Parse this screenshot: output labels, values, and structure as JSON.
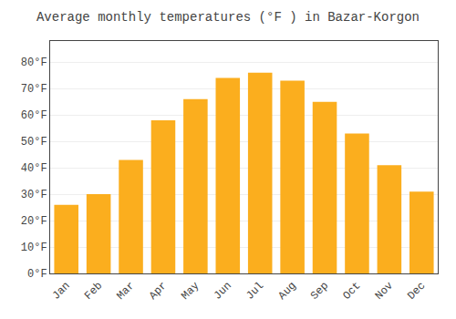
{
  "chart_data": {
    "type": "bar",
    "title": "Average monthly temperatures (°F ) in Bazar-Korgon",
    "categories": [
      "Jan",
      "Feb",
      "Mar",
      "Apr",
      "May",
      "Jun",
      "Jul",
      "Aug",
      "Sep",
      "Oct",
      "Nov",
      "Dec"
    ],
    "values": [
      26,
      30,
      43,
      58,
      66,
      74,
      76,
      73,
      65,
      53,
      41,
      31
    ],
    "color": "#FBAE1E",
    "ylim": [
      0,
      88
    ],
    "yticks": [
      {
        "value": 0,
        "label": "0°F"
      },
      {
        "value": 10,
        "label": "10°F"
      },
      {
        "value": 20,
        "label": "20°F"
      },
      {
        "value": 30,
        "label": "30°F"
      },
      {
        "value": 40,
        "label": "40°F"
      },
      {
        "value": 50,
        "label": "50°F"
      },
      {
        "value": 60,
        "label": "60°F"
      },
      {
        "value": 70,
        "label": "70°F"
      },
      {
        "value": 80,
        "label": "80°F"
      }
    ],
    "grid": true
  }
}
